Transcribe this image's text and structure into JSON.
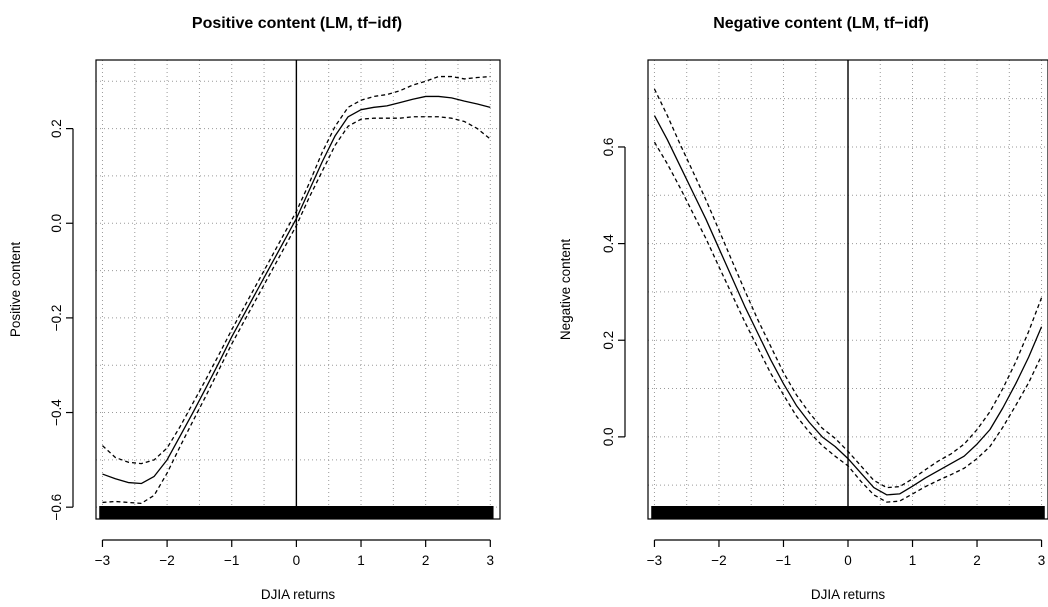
{
  "chart_data": [
    {
      "type": "line",
      "title": "Positive content (LM, tf−idf)",
      "xlabel": "DJIA returns",
      "ylabel": "Positive content",
      "xlim": [
        -3.1,
        3.15
      ],
      "ylim": [
        -0.625,
        0.345
      ],
      "xticks": [
        -3,
        -2,
        -1,
        0,
        1,
        2,
        3
      ],
      "xtick_labels": [
        "−3",
        "−2",
        "−1",
        "0",
        "1",
        "2",
        "3"
      ],
      "yticks": [
        -0.6,
        -0.4,
        -0.2,
        0.0,
        0.2
      ],
      "ytick_labels": [
        "−0.6",
        "−0.4",
        "−0.2",
        "0.0",
        "0.2"
      ],
      "grid": true,
      "vline_x": 0,
      "rug": true,
      "series": [
        {
          "style": "solid",
          "x": [
            -3,
            -2.8,
            -2.6,
            -2.4,
            -2.2,
            -2,
            -1.8,
            -1.6,
            -1.4,
            -1.2,
            -1,
            -0.8,
            -0.6,
            -0.4,
            -0.2,
            0,
            0.2,
            0.4,
            0.6,
            0.8,
            1,
            1.2,
            1.4,
            1.6,
            1.8,
            2,
            2.2,
            2.4,
            2.6,
            2.8,
            3
          ],
          "y": [
            -0.53,
            -0.54,
            -0.548,
            -0.55,
            -0.535,
            -0.5,
            -0.45,
            -0.4,
            -0.348,
            -0.295,
            -0.24,
            -0.19,
            -0.14,
            -0.09,
            -0.04,
            0.01,
            0.07,
            0.13,
            0.185,
            0.225,
            0.24,
            0.245,
            0.248,
            0.255,
            0.262,
            0.268,
            0.268,
            0.265,
            0.258,
            0.252,
            0.245
          ]
        },
        {
          "style": "dashed",
          "x": [
            -3,
            -2.8,
            -2.6,
            -2.4,
            -2.2,
            -2,
            -1.8,
            -1.6,
            -1.4,
            -1.2,
            -1,
            -0.8,
            -0.6,
            -0.4,
            -0.2,
            0,
            0.2,
            0.4,
            0.6,
            0.8,
            1,
            1.2,
            1.4,
            1.6,
            1.8,
            2,
            2.2,
            2.4,
            2.6,
            2.8,
            3
          ],
          "y": [
            -0.47,
            -0.495,
            -0.505,
            -0.508,
            -0.5,
            -0.475,
            -0.43,
            -0.38,
            -0.33,
            -0.278,
            -0.225,
            -0.175,
            -0.125,
            -0.075,
            -0.025,
            0.025,
            0.085,
            0.15,
            0.205,
            0.245,
            0.26,
            0.268,
            0.272,
            0.28,
            0.292,
            0.3,
            0.31,
            0.31,
            0.305,
            0.308,
            0.31
          ]
        },
        {
          "style": "dashed",
          "x": [
            -3,
            -2.8,
            -2.6,
            -2.4,
            -2.2,
            -2,
            -1.8,
            -1.6,
            -1.4,
            -1.2,
            -1,
            -0.8,
            -0.6,
            -0.4,
            -0.2,
            0,
            0.2,
            0.4,
            0.6,
            0.8,
            1,
            1.2,
            1.4,
            1.6,
            1.8,
            2,
            2.2,
            2.4,
            2.6,
            2.8,
            3
          ],
          "y": [
            -0.59,
            -0.588,
            -0.59,
            -0.592,
            -0.575,
            -0.528,
            -0.472,
            -0.418,
            -0.365,
            -0.31,
            -0.255,
            -0.205,
            -0.155,
            -0.105,
            -0.055,
            -0.005,
            0.055,
            0.11,
            0.165,
            0.205,
            0.22,
            0.222,
            0.222,
            0.222,
            0.225,
            0.225,
            0.225,
            0.222,
            0.215,
            0.2,
            0.178
          ]
        }
      ]
    },
    {
      "type": "line",
      "title": "Negative content (LM, tf−idf)",
      "xlabel": "DJIA returns",
      "ylabel": "Negative content",
      "xlim": [
        -3.1,
        3.1
      ],
      "ylim": [
        -0.17,
        0.78
      ],
      "xticks": [
        -3,
        -2,
        -1,
        0,
        1,
        2,
        3
      ],
      "xtick_labels": [
        "−3",
        "−2",
        "−1",
        "0",
        "1",
        "2",
        "3"
      ],
      "yticks": [
        0.0,
        0.2,
        0.4,
        0.6
      ],
      "ytick_labels": [
        "0.0",
        "0.2",
        "0.4",
        "0.6"
      ],
      "grid": true,
      "vline_x": 0,
      "rug": true,
      "series": [
        {
          "style": "solid",
          "x": [
            -3,
            -2.8,
            -2.6,
            -2.4,
            -2.2,
            -2,
            -1.8,
            -1.6,
            -1.4,
            -1.2,
            -1,
            -0.8,
            -0.6,
            -0.4,
            -0.2,
            0,
            0.2,
            0.4,
            0.6,
            0.8,
            1,
            1.2,
            1.4,
            1.6,
            1.8,
            2,
            2.2,
            2.4,
            2.6,
            2.8,
            3
          ],
          "y": [
            0.665,
            0.615,
            0.56,
            0.505,
            0.45,
            0.39,
            0.33,
            0.27,
            0.215,
            0.16,
            0.11,
            0.065,
            0.03,
            0.0,
            -0.02,
            -0.045,
            -0.075,
            -0.105,
            -0.12,
            -0.118,
            -0.102,
            -0.085,
            -0.07,
            -0.055,
            -0.04,
            -0.015,
            0.015,
            0.06,
            0.11,
            0.165,
            0.228
          ]
        },
        {
          "style": "dashed",
          "x": [
            -3,
            -2.8,
            -2.6,
            -2.4,
            -2.2,
            -2,
            -1.8,
            -1.6,
            -1.4,
            -1.2,
            -1,
            -0.8,
            -0.6,
            -0.4,
            -0.2,
            0,
            0.2,
            0.4,
            0.6,
            0.8,
            1,
            1.2,
            1.4,
            1.6,
            1.8,
            2,
            2.2,
            2.4,
            2.6,
            2.8,
            3
          ],
          "y": [
            0.72,
            0.665,
            0.605,
            0.548,
            0.49,
            0.428,
            0.365,
            0.303,
            0.243,
            0.188,
            0.133,
            0.087,
            0.05,
            0.018,
            -0.003,
            -0.03,
            -0.06,
            -0.09,
            -0.105,
            -0.103,
            -0.087,
            -0.068,
            -0.05,
            -0.035,
            -0.015,
            0.015,
            0.052,
            0.1,
            0.155,
            0.218,
            0.288
          ]
        },
        {
          "style": "dashed",
          "x": [
            -3,
            -2.8,
            -2.6,
            -2.4,
            -2.2,
            -2,
            -1.8,
            -1.6,
            -1.4,
            -1.2,
            -1,
            -0.8,
            -0.6,
            -0.4,
            -0.2,
            0,
            0.2,
            0.4,
            0.6,
            0.8,
            1,
            1.2,
            1.4,
            1.6,
            1.8,
            2,
            2.2,
            2.4,
            2.6,
            2.8,
            3
          ],
          "y": [
            0.61,
            0.565,
            0.515,
            0.462,
            0.41,
            0.352,
            0.295,
            0.238,
            0.185,
            0.132,
            0.087,
            0.043,
            0.01,
            -0.018,
            -0.04,
            -0.06,
            -0.092,
            -0.12,
            -0.135,
            -0.133,
            -0.118,
            -0.103,
            -0.09,
            -0.078,
            -0.065,
            -0.045,
            -0.02,
            0.02,
            0.065,
            0.112,
            0.168
          ]
        }
      ]
    }
  ]
}
